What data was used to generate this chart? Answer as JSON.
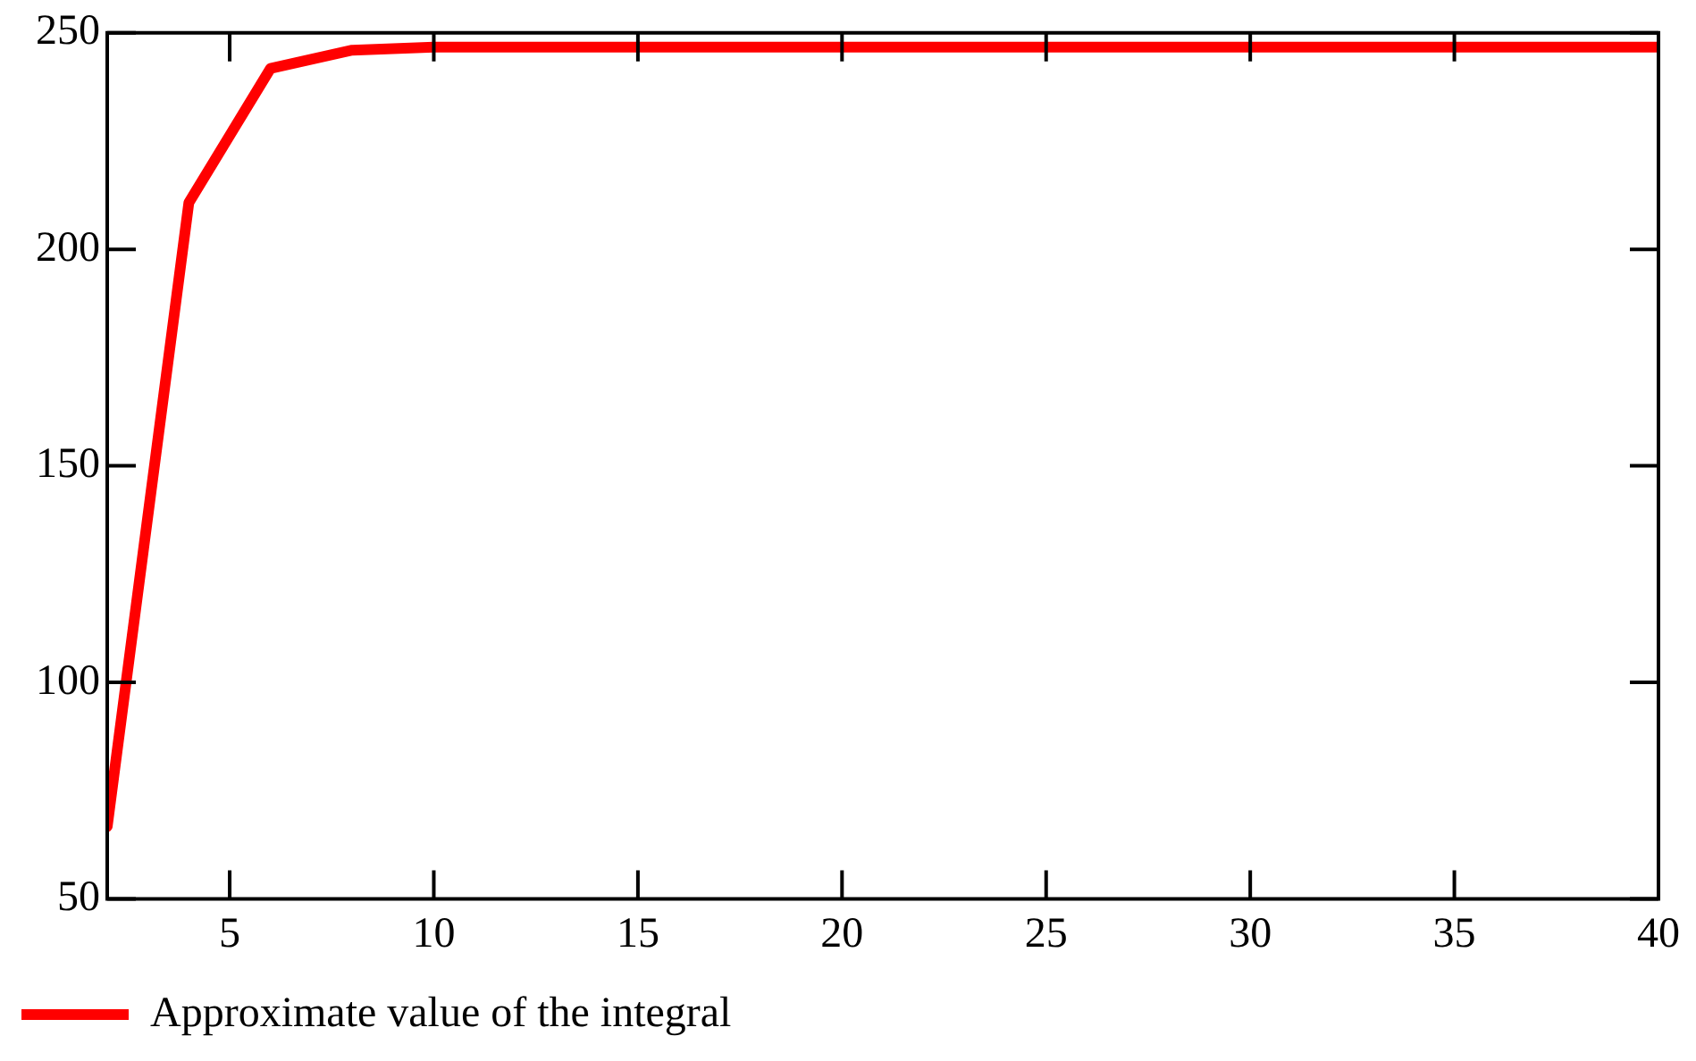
{
  "chart_data": {
    "type": "line",
    "x": [
      2,
      4,
      6,
      8,
      10,
      12,
      14,
      16,
      18,
      20,
      22,
      24,
      26,
      28,
      30,
      32,
      34,
      36,
      38,
      40
    ],
    "series": [
      {
        "name": "Approximate value of the integral",
        "color": "#ff0000",
        "values": [
          66.7,
          210.8,
          241.8,
          246,
          246.7,
          246.7,
          246.7,
          246.7,
          246.7,
          246.7,
          246.7,
          246.7,
          246.7,
          246.7,
          246.7,
          246.7,
          246.7,
          246.7,
          246.7,
          246.7
        ]
      }
    ],
    "xlim": [
      2,
      40
    ],
    "xticks": [
      5,
      10,
      15,
      20,
      25,
      30,
      35,
      40
    ],
    "ylim": [
      50,
      250
    ],
    "yticks": [
      50,
      100,
      150,
      200,
      250
    ],
    "grid": false,
    "legend": "bottom left",
    "marker": "none",
    "line_style": "solid"
  }
}
